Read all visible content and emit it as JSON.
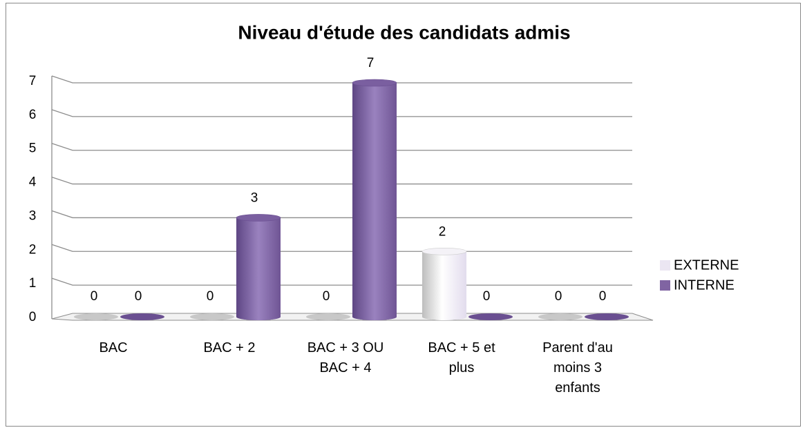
{
  "chart_data": {
    "type": "bar3d",
    "title": "Niveau d'étude des candidats admis",
    "categories": [
      "BAC",
      "BAC + 2",
      "BAC + 3 OU BAC + 4",
      "BAC + 5 et plus",
      "Parent d'au moins 3 enfants"
    ],
    "series": [
      {
        "name": "EXTERNE",
        "color": "#ebe6f2",
        "values": [
          0,
          0,
          0,
          2,
          0
        ]
      },
      {
        "name": "INTERNE",
        "color": "#8064a2",
        "values": [
          0,
          3,
          7,
          0,
          0
        ]
      }
    ],
    "ylim": [
      0,
      7
    ],
    "yticks": [
      0,
      1,
      2,
      3,
      4,
      5,
      6,
      7
    ],
    "grid": true,
    "legend": "right"
  }
}
